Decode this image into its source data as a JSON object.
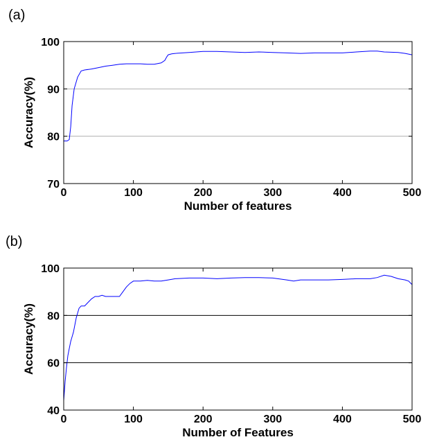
{
  "chart_data": [
    {
      "panel_label": "(a)",
      "type": "line",
      "xlabel": "Number of features",
      "ylabel": "Accuracy(%)",
      "xlim": [
        0,
        500
      ],
      "ylim": [
        70,
        100
      ],
      "x_ticks": [
        0,
        100,
        200,
        300,
        400,
        500
      ],
      "y_ticks": [
        70,
        80,
        90,
        100
      ],
      "grid_lines_y": [
        80,
        90
      ],
      "grid_color": "#b0b0b0",
      "line_color": "#0000ff",
      "series": [
        {
          "x": [
            0,
            5,
            8,
            10,
            12,
            15,
            18,
            20,
            25,
            30,
            40,
            50,
            60,
            70,
            80,
            90,
            100,
            110,
            120,
            130,
            140,
            145,
            148,
            150,
            155,
            160,
            180,
            200,
            220,
            240,
            260,
            280,
            300,
            320,
            340,
            360,
            380,
            400,
            420,
            440,
            450,
            460,
            480,
            490,
            500
          ],
          "y": [
            79.0,
            79.0,
            79.3,
            82.0,
            86.5,
            90.0,
            91.5,
            92.5,
            93.8,
            94.0,
            94.2,
            94.5,
            94.8,
            95.0,
            95.2,
            95.3,
            95.3,
            95.3,
            95.2,
            95.2,
            95.5,
            96.0,
            96.8,
            97.2,
            97.4,
            97.5,
            97.7,
            97.9,
            97.9,
            97.8,
            97.7,
            97.8,
            97.7,
            97.6,
            97.5,
            97.6,
            97.6,
            97.6,
            97.8,
            98.0,
            98.0,
            97.8,
            97.7,
            97.5,
            97.2
          ]
        }
      ]
    },
    {
      "panel_label": "(b)",
      "type": "line",
      "xlabel": "Number of Features",
      "ylabel": "Accuracy(%)",
      "xlim": [
        0,
        500
      ],
      "ylim": [
        40,
        100
      ],
      "x_ticks": [
        0,
        100,
        200,
        300,
        400,
        500
      ],
      "y_ticks": [
        40,
        60,
        80,
        100
      ],
      "grid_lines_y": [
        60,
        80
      ],
      "grid_color": "#000000",
      "line_color": "#0000ff",
      "series": [
        {
          "x": [
            0,
            2,
            4,
            6,
            8,
            10,
            12,
            14,
            16,
            18,
            20,
            22,
            25,
            30,
            35,
            40,
            45,
            50,
            55,
            60,
            65,
            70,
            75,
            80,
            85,
            90,
            95,
            100,
            110,
            120,
            130,
            140,
            150,
            160,
            180,
            200,
            220,
            240,
            260,
            280,
            300,
            320,
            330,
            340,
            360,
            380,
            400,
            420,
            440,
            450,
            460,
            470,
            480,
            490,
            495,
            500
          ],
          "y": [
            44,
            52,
            58,
            63,
            66,
            69,
            71,
            73,
            76,
            79,
            81,
            83,
            84,
            84,
            85.5,
            87,
            88,
            88,
            88.5,
            88,
            88,
            88,
            88,
            88,
            90,
            92,
            93.5,
            94.5,
            94.5,
            94.8,
            94.5,
            94.5,
            95,
            95.5,
            95.8,
            95.8,
            95.5,
            95.8,
            96,
            96,
            95.8,
            95,
            94.5,
            95,
            95,
            95,
            95.2,
            95.5,
            95.5,
            96,
            97,
            96.5,
            95.5,
            95,
            94.5,
            93
          ]
        }
      ]
    }
  ]
}
